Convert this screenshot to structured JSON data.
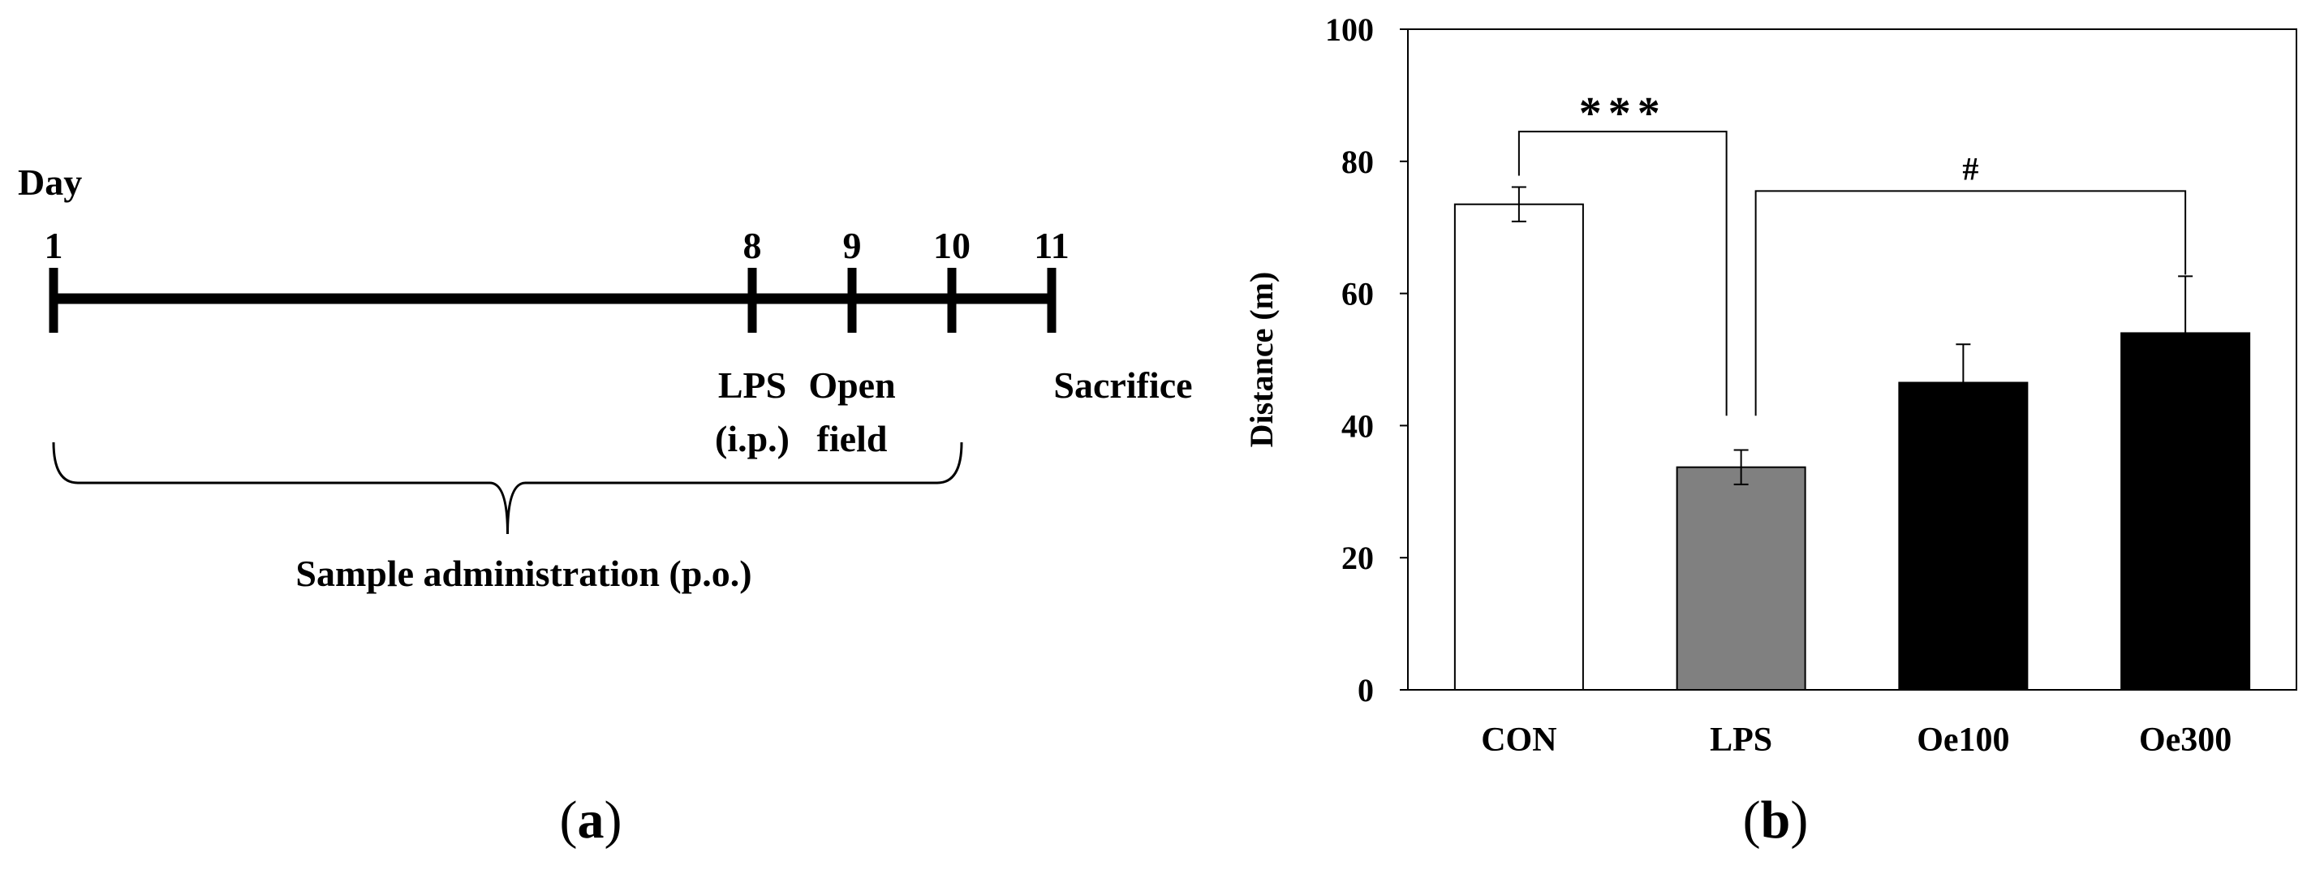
{
  "panel_a": {
    "day_label": "Day",
    "ticks": [
      {
        "day": 1,
        "label": "1"
      },
      {
        "day": 8,
        "label": "8"
      },
      {
        "day": 9,
        "label": "9"
      },
      {
        "day": 10,
        "label": "10"
      },
      {
        "day": 11,
        "label": "11"
      }
    ],
    "events": [
      {
        "day": 8,
        "lines": [
          "LPS",
          "(i.p.)"
        ]
      },
      {
        "day": 9,
        "lines": [
          "Open",
          "field"
        ]
      },
      {
        "day": 11,
        "lines": [
          "Sacrifice"
        ]
      }
    ],
    "brace_start_day": 1,
    "brace_end_day": 10,
    "brace_label": "Sample administration (p.o.)",
    "panel_label": "a"
  },
  "panel_b": {
    "panel_label": "b",
    "chart_data": {
      "type": "bar",
      "categories": [
        "CON",
        "LPS",
        "Oe100",
        "Oe300"
      ],
      "values": [
        73.5,
        33.7,
        46.5,
        54.0
      ],
      "errors": [
        2.6,
        2.6,
        5.8,
        8.6
      ],
      "bar_colors": [
        "#ffffff",
        "#808080",
        "#000000",
        "#000000"
      ],
      "ylabel": "Distance  (m)",
      "xlabel": "",
      "ylim": [
        0,
        100
      ],
      "yticks": [
        0,
        20,
        40,
        60,
        80,
        100
      ],
      "grid": false,
      "annotations": [
        {
          "from": "CON",
          "to": "LPS",
          "text": "***"
        },
        {
          "from": "LPS",
          "to": "Oe300",
          "text": "#"
        }
      ]
    }
  }
}
